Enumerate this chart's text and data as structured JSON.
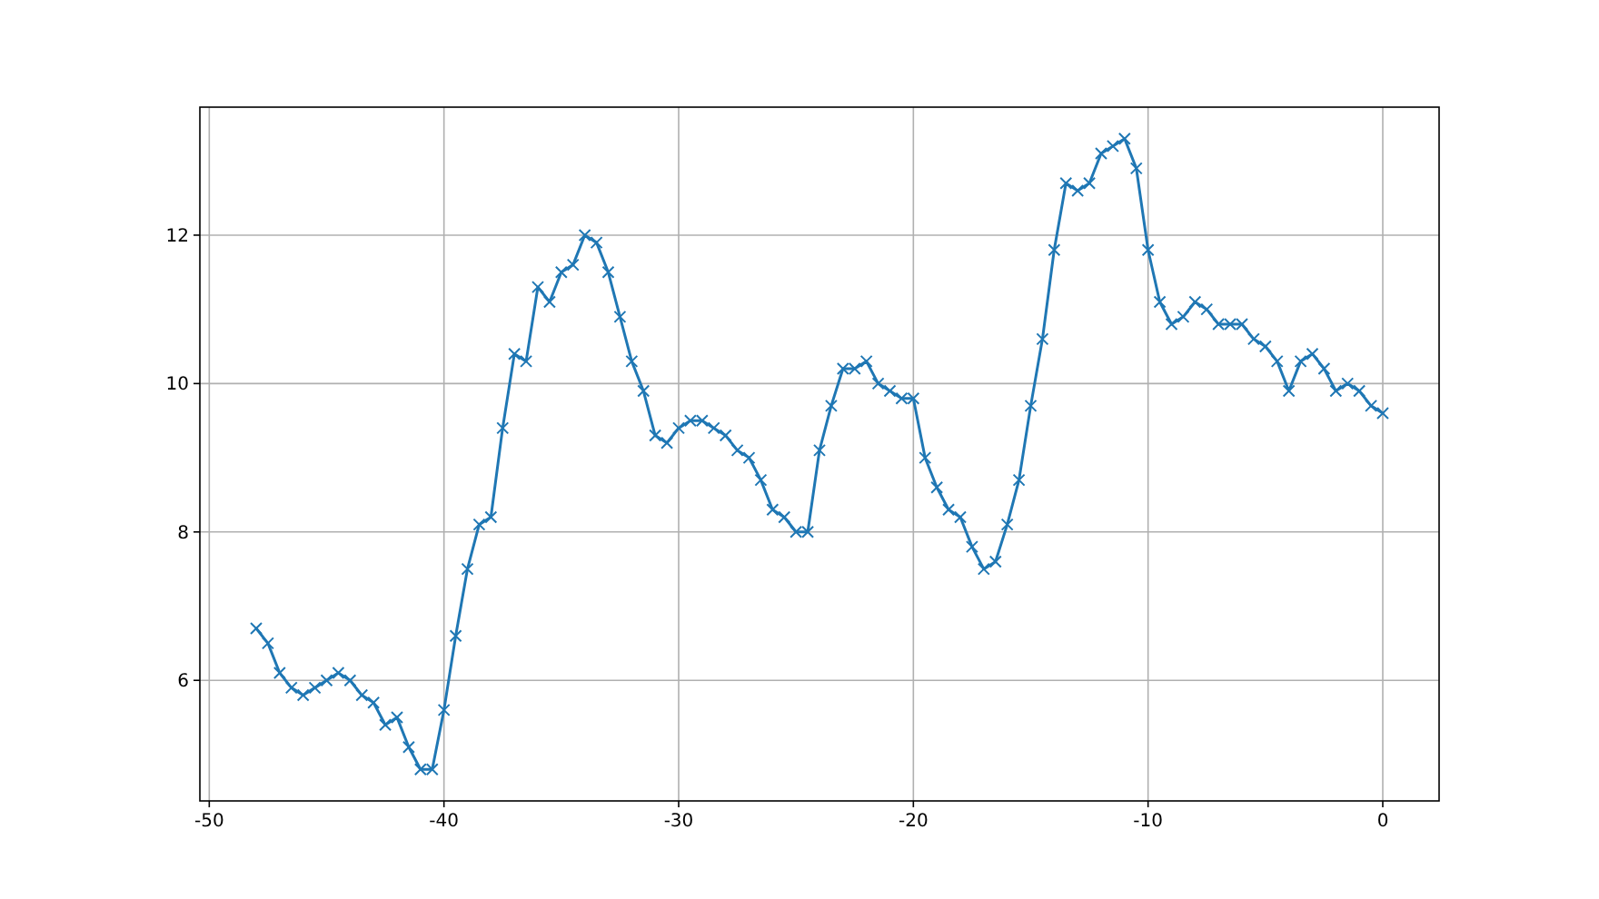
{
  "chart_data": {
    "type": "line",
    "x": [
      -48,
      -47.5,
      -47,
      -46.5,
      -46,
      -45.5,
      -45,
      -44.5,
      -44,
      -43.5,
      -43,
      -42.5,
      -42,
      -41.5,
      -41,
      -40.5,
      -40,
      -39.5,
      -39,
      -38.5,
      -38,
      -37.5,
      -37,
      -36.5,
      -36,
      -35.5,
      -35,
      -34.5,
      -34,
      -33.5,
      -33,
      -32.5,
      -32,
      -31.5,
      -31,
      -30.5,
      -30,
      -29.5,
      -29,
      -28.5,
      -28,
      -27.5,
      -27,
      -26.5,
      -26,
      -25.5,
      -25,
      -24.5,
      -24,
      -23.5,
      -23,
      -22.5,
      -22,
      -21.5,
      -21,
      -20.5,
      -20,
      -19.5,
      -19,
      -18.5,
      -18,
      -17.5,
      -17,
      -16.5,
      -16,
      -15.5,
      -15,
      -14.5,
      -14,
      -13.5,
      -13,
      -12.5,
      -12,
      -11.5,
      -11,
      -10.5,
      -10,
      -9.5,
      -9,
      -8.5,
      -8,
      -7.5,
      -7,
      -6.5,
      -6,
      -5.5,
      -5,
      -4.5,
      -4,
      -3.5,
      -3,
      -2.5,
      -2,
      -1.5,
      -1,
      -0.5,
      0
    ],
    "series": [
      {
        "color": "#1f77b4",
        "values": [
          6.7,
          6.5,
          6.1,
          5.9,
          5.8,
          5.9,
          6.0,
          6.1,
          6.0,
          5.8,
          5.7,
          5.4,
          5.5,
          5.1,
          4.8,
          4.8,
          5.6,
          6.6,
          7.5,
          8.1,
          8.2,
          9.4,
          10.4,
          10.3,
          11.3,
          11.1,
          11.5,
          11.6,
          12.0,
          11.9,
          11.5,
          10.9,
          10.3,
          9.9,
          9.3,
          9.2,
          9.4,
          9.5,
          9.5,
          9.4,
          9.3,
          9.1,
          9.0,
          8.7,
          8.3,
          8.2,
          8.0,
          8.0,
          9.1,
          9.7,
          10.2,
          10.2,
          10.3,
          10.0,
          9.9,
          9.8,
          9.8,
          9.0,
          8.6,
          8.3,
          8.2,
          7.8,
          7.5,
          7.6,
          8.1,
          8.7,
          9.7,
          10.6,
          11.8,
          12.7,
          12.6,
          12.7,
          13.1,
          13.2,
          13.3,
          12.9,
          11.8,
          11.1,
          10.8,
          10.9,
          11.1,
          11.0,
          10.8,
          10.8,
          10.8,
          10.6,
          10.5,
          10.3,
          9.9,
          10.3,
          10.4,
          10.2,
          9.9,
          10.0,
          9.9,
          9.7,
          9.6
        ]
      }
    ],
    "xlim": [
      -50.4,
      2.4
    ],
    "xticks": [
      -50,
      -40,
      -30,
      -20,
      -10,
      0
    ],
    "ylim": [
      4.375,
      13.725
    ],
    "yticks": [
      6,
      8,
      10,
      12
    ],
    "grid": true,
    "marker": "cross",
    "line_style": "solid"
  }
}
